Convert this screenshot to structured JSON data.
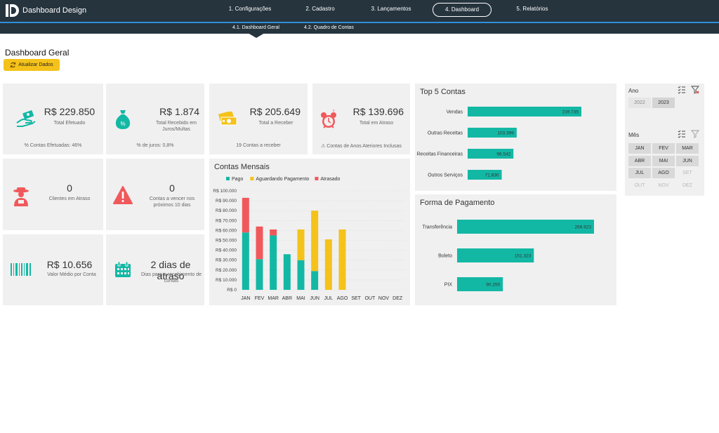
{
  "app": {
    "name": "Dashboard Design"
  },
  "nav": [
    {
      "label": "1. Configurações"
    },
    {
      "label": "2. Cadastro"
    },
    {
      "label": "3. Lançamentos"
    },
    {
      "label": "4. Dashboard"
    },
    {
      "label": "5. Relatórios"
    }
  ],
  "subnav": [
    {
      "label": "4.1. Dashboard Geral"
    },
    {
      "label": "4.2. Quadro de Contas"
    }
  ],
  "page": {
    "title": "Dashboard Geral",
    "refresh_label": "Atualizar Dados"
  },
  "colors": {
    "teal": "#13b8a5",
    "yellow": "#f4c21a",
    "red": "#f0595c",
    "nav": "#26343e",
    "accent": "#2f8fd8"
  },
  "kpis": {
    "efetuado": {
      "value": "R$ 229.850",
      "label": "Total Efetuado",
      "foot": "% Contas Efetuadas: 46%",
      "icon": "money-hand-icon"
    },
    "juros": {
      "value": "R$ 1.874",
      "label": "Total Recebido em Juros/Multas",
      "foot": "% de juros: 0,8%",
      "icon": "money-bag-icon"
    },
    "receber": {
      "value": "R$ 205.649",
      "label": "Total a Receber",
      "foot": "19 Contas a receber",
      "icon": "cash-icon"
    },
    "atraso": {
      "value": "R$ 139.696",
      "label": "Total em Atraso",
      "foot": "Contas de Anos Ateriores Inclusas",
      "icon": "alarm-clock-icon"
    },
    "clientes": {
      "value": "0",
      "label": "Clientes em Atraso",
      "icon": "farmer-icon"
    },
    "vencer": {
      "value": "0",
      "label": "Contas a vencer nos próximos 10 dias",
      "icon": "warning-icon"
    },
    "medio": {
      "value": "R$ 10.656",
      "label": "Valor Médio por Conta",
      "icon": "barcode-icon"
    },
    "dias": {
      "value": "2 dias de atraso",
      "label": "Dias para o recebimento de contas",
      "icon": "calendar-icon"
    }
  },
  "chart_data": [
    {
      "type": "bar",
      "stacked": true,
      "title": "Contas Mensais",
      "categories": [
        "JAN",
        "FEV",
        "MAR",
        "ABR",
        "MAI",
        "JUN",
        "JUL",
        "AGO",
        "SET",
        "OUT",
        "NOV",
        "DEZ"
      ],
      "series": [
        {
          "name": "Pago",
          "color": "#13b8a5",
          "values": [
            58000,
            31000,
            55000,
            36000,
            30000,
            19000,
            0,
            0,
            0,
            0,
            0,
            0
          ]
        },
        {
          "name": "Aguardando Pagamento",
          "color": "#f4c21a",
          "values": [
            0,
            0,
            0,
            0,
            31000,
            61000,
            51000,
            61000,
            0,
            0,
            0,
            0
          ]
        },
        {
          "name": "Atrasado",
          "color": "#f0595c",
          "values": [
            35000,
            33000,
            6000,
            0,
            0,
            0,
            0,
            0,
            0,
            0,
            0,
            0
          ]
        }
      ],
      "yticks": [
        "R$ 0",
        "R$ 10.000",
        "R$ 20.000",
        "R$ 30.000",
        "R$ 40.000",
        "R$ 50.000",
        "R$ 60.000",
        "R$ 70.000",
        "R$ 80.000",
        "R$ 90.000",
        "R$ 100.000"
      ],
      "ylim": [
        0,
        100000
      ],
      "legend": "top"
    },
    {
      "type": "bar",
      "orientation": "horizontal",
      "title": "Top 5 Contas",
      "categories": [
        "Vendas",
        "Outras Receitas",
        "Receitas Financeiras",
        "Outros Serviços"
      ],
      "values": [
        239735,
        103399,
        96542,
        71830
      ],
      "labels": [
        "239.735",
        "103.399",
        "96.542",
        "71.830"
      ],
      "color": "#13b8a5"
    },
    {
      "type": "bar",
      "orientation": "horizontal",
      "title": "Forma de Pagamento",
      "categories": [
        "Transferência",
        "Boleto",
        "PIX"
      ],
      "values": [
        269923,
        151323,
        90250
      ],
      "labels": [
        "269.923",
        "151.323",
        "90.250"
      ],
      "color": "#13b8a5"
    }
  ],
  "slicers": {
    "ano": {
      "title": "Ano",
      "items": [
        {
          "label": "2022",
          "state": "available"
        },
        {
          "label": "2023",
          "state": "selected"
        }
      ]
    },
    "mes": {
      "title": "Mês",
      "items": [
        {
          "label": "JAN",
          "state": "selected"
        },
        {
          "label": "FEV",
          "state": "selected"
        },
        {
          "label": "MAR",
          "state": "selected"
        },
        {
          "label": "ABR",
          "state": "selected"
        },
        {
          "label": "MAI",
          "state": "selected"
        },
        {
          "label": "JUN",
          "state": "selected"
        },
        {
          "label": "JUL",
          "state": "selected"
        },
        {
          "label": "AGO",
          "state": "selected"
        },
        {
          "label": "SET",
          "state": "empty"
        },
        {
          "label": "OUT",
          "state": "empty"
        },
        {
          "label": "NOV",
          "state": "empty"
        },
        {
          "label": "DEZ",
          "state": "empty"
        }
      ]
    }
  }
}
